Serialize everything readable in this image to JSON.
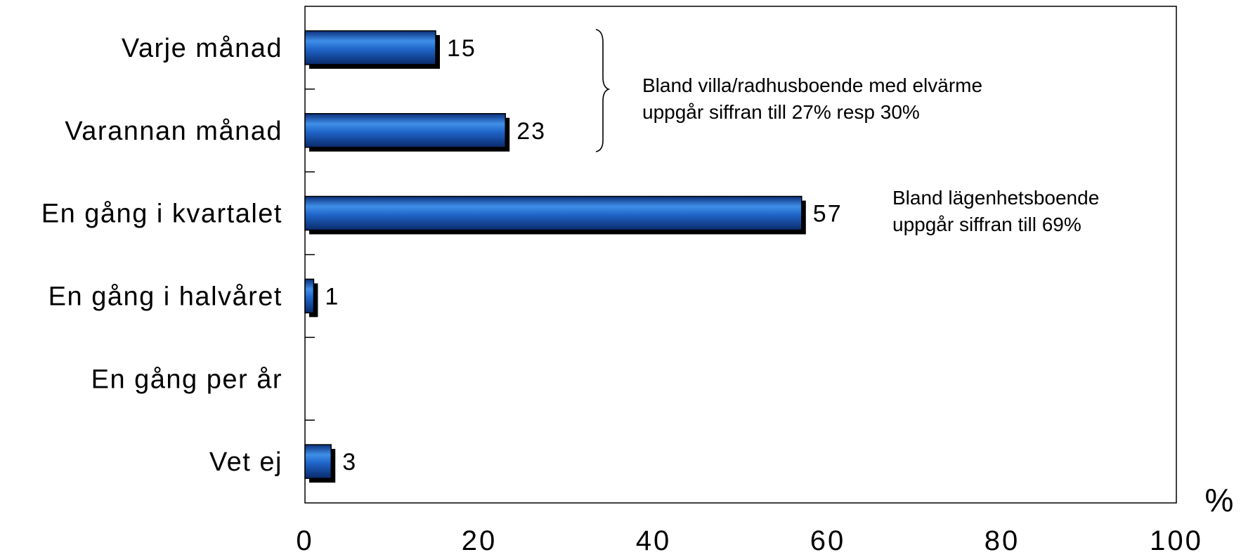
{
  "chart_data": {
    "type": "bar",
    "orientation": "horizontal",
    "categories": [
      "Varje månad",
      "Varannan månad",
      "En gång i kvartalet",
      "En gång i halvåret",
      "En gång per år",
      "Vet ej"
    ],
    "values": [
      15,
      23,
      57,
      1,
      null,
      3
    ],
    "value_labels": [
      "15",
      "23",
      "57",
      "1",
      "",
      "3"
    ],
    "xlim": [
      0,
      100
    ],
    "xticks": [
      0,
      20,
      40,
      60,
      80,
      100
    ],
    "xtick_labels": [
      "0",
      "20",
      "40",
      "60",
      "80",
      "100"
    ],
    "xlabel": "%",
    "grid": false,
    "bar_color": "#1f5fbf",
    "bar_shadow_color": "#000000",
    "annotations": [
      {
        "text_lines": [
          "Bland villa/radhusboende med elvärme",
          "uppgår siffran till 27% resp 30%"
        ],
        "brace_categories": [
          "Varje månad",
          "Varannan månad"
        ]
      },
      {
        "text_lines": [
          "Bland lägenhetsboende",
          "uppgår siffran till 69%"
        ],
        "category": "En gång i kvartalet"
      }
    ]
  }
}
